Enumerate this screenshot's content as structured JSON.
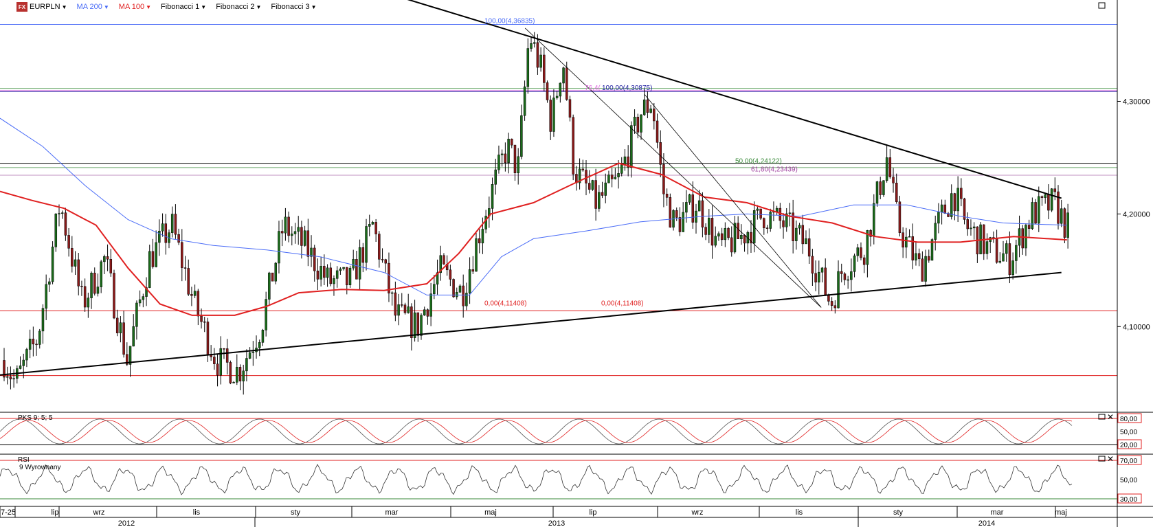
{
  "toolbar": {
    "symbol": "EURPLN",
    "logo_text": "FX",
    "items": [
      {
        "label": "MA 200",
        "color": "#4a6cf7"
      },
      {
        "label": "MA 100",
        "color": "#e02020"
      },
      {
        "label": "Fibonacci 1",
        "color": "#000000"
      },
      {
        "label": "Fibonacci 2",
        "color": "#000000"
      },
      {
        "label": "Fibonacci 3",
        "color": "#000000"
      }
    ]
  },
  "chart_data": {
    "type": "candlestick",
    "symbol": "EURPLN",
    "ylim": [
      4.03,
      4.39
    ],
    "y_ticks": [
      "4,30000",
      "4,20000",
      "4,10000"
    ],
    "x_ticks": [
      "7-25",
      "lip",
      "wrz",
      "lis",
      "sty",
      "mar",
      "maj",
      "lip",
      "wrz",
      "lis",
      "sty",
      "mar",
      "maj"
    ],
    "year_ticks": [
      "2012",
      "2013",
      "2014"
    ],
    "series": [
      {
        "name": "MA 200",
        "color": "#4a6cf7",
        "values": [
          [
            0,
            4.285
          ],
          [
            0.04,
            4.26
          ],
          [
            0.08,
            4.225
          ],
          [
            0.12,
            4.195
          ],
          [
            0.16,
            4.178
          ],
          [
            0.2,
            4.172
          ],
          [
            0.25,
            4.168
          ],
          [
            0.3,
            4.162
          ],
          [
            0.36,
            4.148
          ],
          [
            0.4,
            4.128
          ],
          [
            0.44,
            4.128
          ],
          [
            0.47,
            4.162
          ],
          [
            0.5,
            4.178
          ],
          [
            0.55,
            4.185
          ],
          [
            0.6,
            4.193
          ],
          [
            0.66,
            4.198
          ],
          [
            0.7,
            4.2
          ],
          [
            0.75,
            4.198
          ],
          [
            0.8,
            4.208
          ],
          [
            0.85,
            4.208
          ],
          [
            0.9,
            4.198
          ],
          [
            0.94,
            4.192
          ],
          [
            1.0,
            4.19
          ]
        ]
      },
      {
        "name": "MA 100",
        "color": "#e02020",
        "values": [
          [
            0,
            4.22
          ],
          [
            0.03,
            4.212
          ],
          [
            0.06,
            4.205
          ],
          [
            0.09,
            4.19
          ],
          [
            0.12,
            4.152
          ],
          [
            0.15,
            4.12
          ],
          [
            0.18,
            4.11
          ],
          [
            0.22,
            4.11
          ],
          [
            0.25,
            4.118
          ],
          [
            0.28,
            4.13
          ],
          [
            0.32,
            4.133
          ],
          [
            0.36,
            4.132
          ],
          [
            0.4,
            4.138
          ],
          [
            0.43,
            4.165
          ],
          [
            0.46,
            4.2
          ],
          [
            0.5,
            4.21
          ],
          [
            0.54,
            4.228
          ],
          [
            0.58,
            4.245
          ],
          [
            0.62,
            4.235
          ],
          [
            0.66,
            4.215
          ],
          [
            0.7,
            4.21
          ],
          [
            0.74,
            4.198
          ],
          [
            0.78,
            4.192
          ],
          [
            0.82,
            4.18
          ],
          [
            0.86,
            4.175
          ],
          [
            0.9,
            4.175
          ],
          [
            0.95,
            4.18
          ],
          [
            1.0,
            4.177
          ]
        ]
      }
    ],
    "horizontal_levels": [
      {
        "value": 4.36835,
        "color": "#4a6cf7"
      },
      {
        "value": 4.30875,
        "color": "#2020a0"
      },
      {
        "value": 4.3095,
        "color": "#e070e0"
      },
      {
        "value": 4.3115,
        "color": "#6aa86a"
      },
      {
        "value": 4.245,
        "color": "#000000"
      },
      {
        "value": 4.24122,
        "color": "#6aa86a"
      },
      {
        "value": 4.23439,
        "color": "#c090c0"
      },
      {
        "value": 4.11408,
        "color": "#e02020"
      },
      {
        "value": 4.0565,
        "color": "#e02020"
      }
    ],
    "fib_labels": [
      {
        "text": "100,00(4,36835)",
        "color": "#4a6cf7",
        "y": 4.36835
      },
      {
        "text": "76,4(",
        "color": "#e070e0",
        "y": 4.309
      },
      {
        "text": "100,00(4,30875)",
        "color": "#2020a0",
        "y": 4.309
      },
      {
        "text": "50,00(4,24122)",
        "color": "#3a8a3a",
        "y": 4.244
      },
      {
        "text": "61,80(4,23439)",
        "color": "#a040a0",
        "y": 4.2365
      },
      {
        "text": "0,00(4,11408)",
        "color": "#e02020",
        "y": 4.1175
      },
      {
        "text": "0,00(4,11408)",
        "color": "#e02020",
        "y": 4.1175
      }
    ],
    "indicators": [
      {
        "name": "PKS 9; 5; 5",
        "levels": [
          "80,00",
          "50,00",
          "20,00"
        ]
      },
      {
        "name": "RSI",
        "sub_label": "9 Wyrownany",
        "levels": [
          "70,00",
          "50,00",
          "30,00"
        ]
      }
    ],
    "colors": {
      "up": "#1a6b1a",
      "down": "#8b1a1a",
      "trend": "#000000"
    }
  }
}
